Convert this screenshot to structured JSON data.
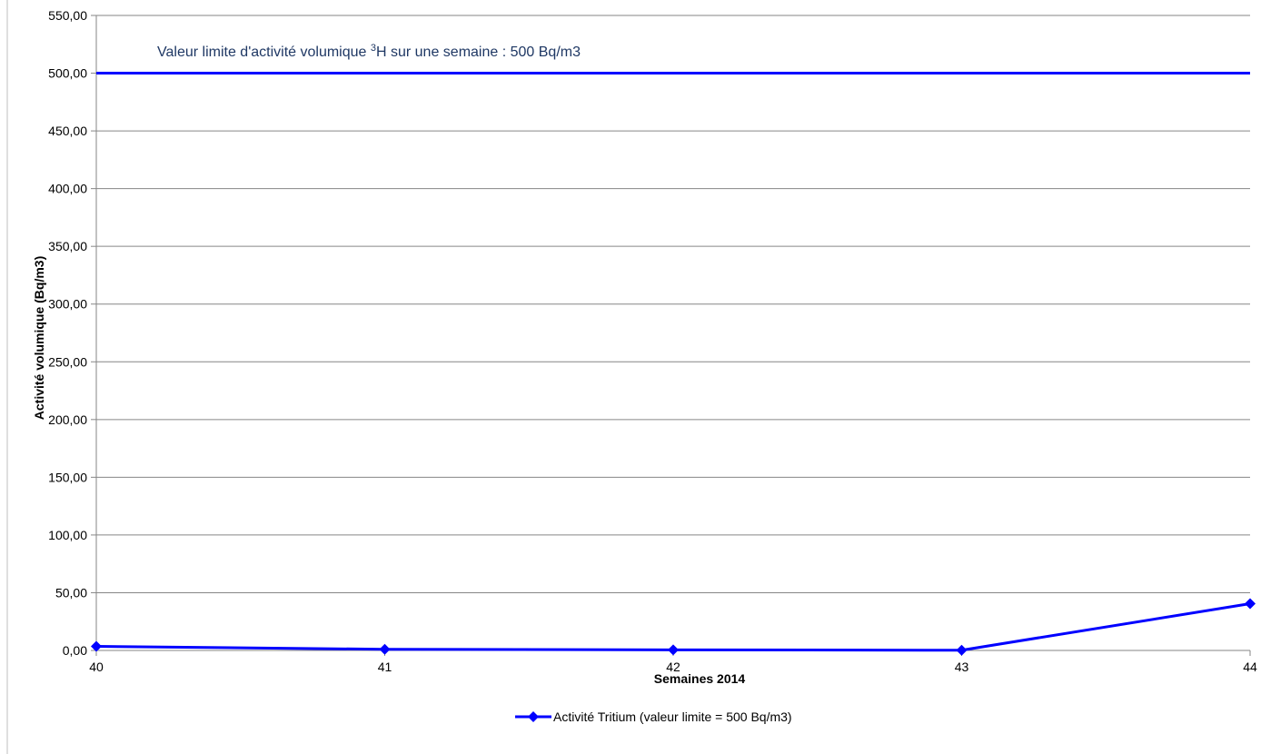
{
  "chart_data": {
    "type": "line",
    "title": "",
    "xlabel": "Semaines 2014",
    "ylabel": "Activité volumique (Bq/m3)",
    "x": [
      "40",
      "41",
      "42",
      "43",
      "44"
    ],
    "ylim": [
      0,
      550
    ],
    "yticks": [
      "0,00",
      "50,00",
      "100,00",
      "150,00",
      "200,00",
      "250,00",
      "300,00",
      "350,00",
      "400,00",
      "450,00",
      "500,00",
      "550,00"
    ],
    "grid": true,
    "series": [
      {
        "name": "Activité Tritium (valeur limite = 500 Bq/m3)",
        "values": [
          3.5,
          1.0,
          0.5,
          0.2,
          40.5
        ],
        "color": "#0000ff",
        "marker": "diamond"
      }
    ],
    "reference_line": {
      "value": 500,
      "color": "#0000ff"
    },
    "annotation": {
      "prefix": "Valeur limite d'activité volumique ",
      "sup": "3",
      "suffix": "H  sur une semaine : 500 Bq/m3"
    },
    "legend_position": "bottom"
  }
}
